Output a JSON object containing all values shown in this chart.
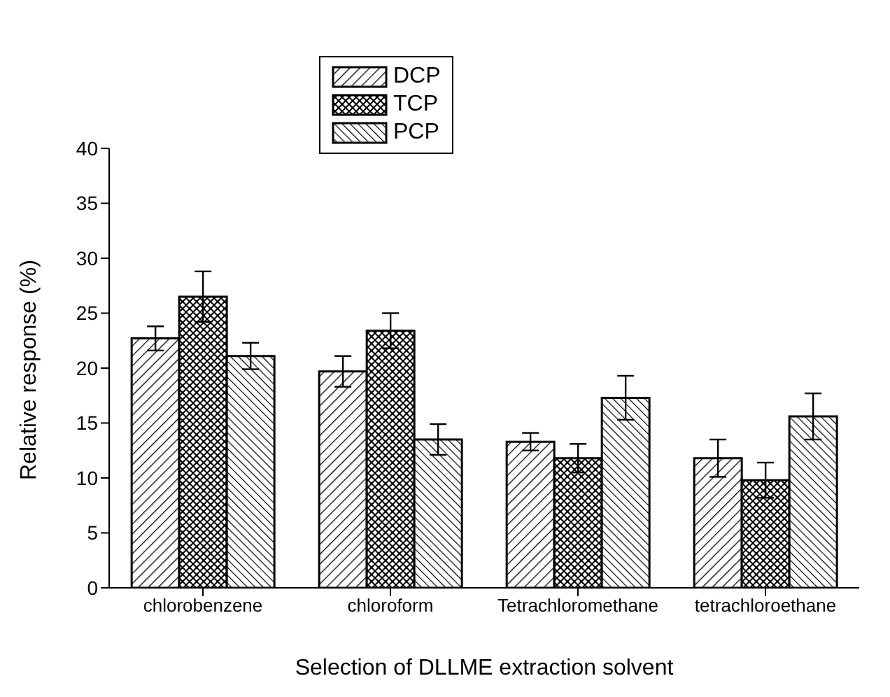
{
  "chart_data": {
    "type": "bar",
    "xlabel": "Selection of DLLME extraction solvent",
    "ylabel": "Relative response (%)",
    "categories": [
      "chlorobenzene",
      "chloroform",
      "Tetrachloromethane",
      "tetrachloroethane"
    ],
    "series": [
      {
        "name": "DCP",
        "color": "#000000",
        "values": [
          22.7,
          19.7,
          13.3,
          11.8
        ],
        "errors": [
          1.1,
          1.4,
          0.8,
          1.7
        ]
      },
      {
        "name": "TCP",
        "color": "#000000",
        "values": [
          26.5,
          23.4,
          11.8,
          9.8
        ],
        "errors": [
          2.3,
          1.6,
          1.3,
          1.6
        ]
      },
      {
        "name": "PCP",
        "color": "#000000",
        "values": [
          21.1,
          13.5,
          17.3,
          15.6
        ],
        "errors": [
          1.2,
          1.4,
          2.0,
          2.1
        ]
      }
    ],
    "ylim": [
      0,
      40
    ],
    "yticks": [
      0,
      5,
      10,
      15,
      20,
      25,
      30,
      35,
      40
    ],
    "grid": false,
    "legend": "top"
  }
}
